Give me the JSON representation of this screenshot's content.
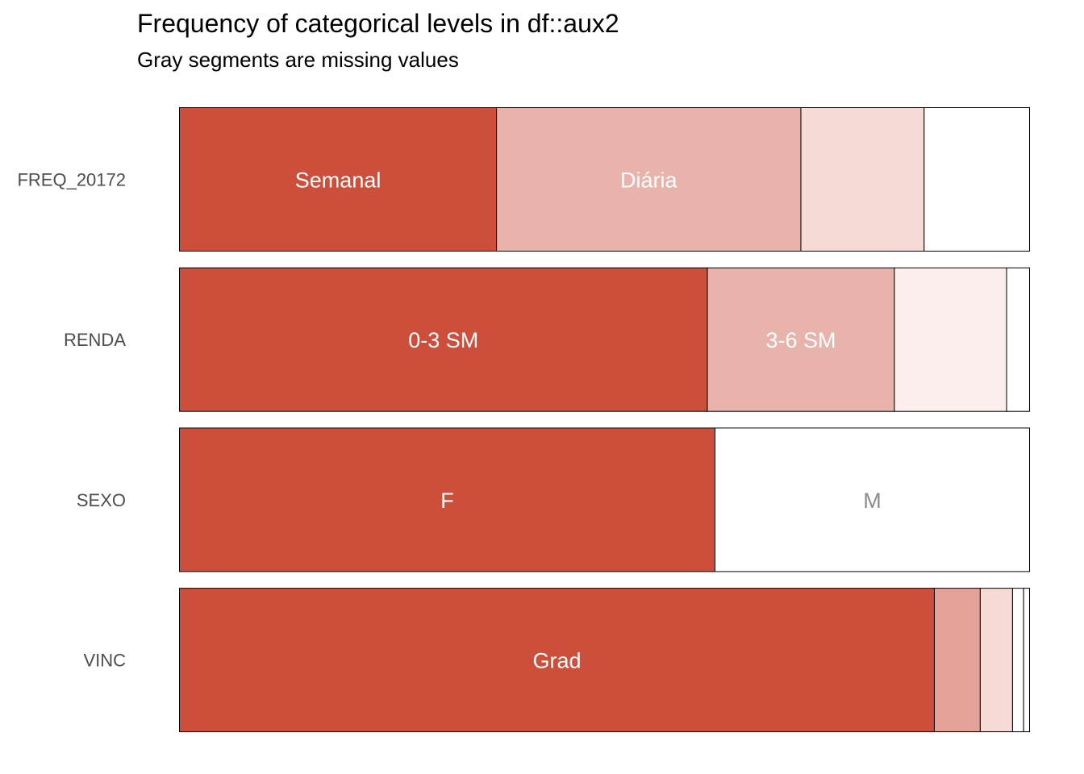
{
  "chart_data": {
    "type": "bar",
    "orientation": "horizontal",
    "stacked": "proportional",
    "title": "Frequency of categorical levels in df::aux2",
    "subtitle": "Gray segments are missing values",
    "xlabel": "",
    "ylabel": "",
    "xlim": [
      0,
      1
    ],
    "grid": false,
    "legend": "none",
    "categories": [
      "FREQ_20172",
      "RENDA",
      "SEXO",
      "VINC"
    ],
    "bars": [
      {
        "category": "FREQ_20172",
        "segments": [
          {
            "label": "Semanal",
            "value": 0.373,
            "color": "#CD4F3B",
            "label_color": "#ffffff"
          },
          {
            "label": "Diária",
            "value": 0.358,
            "color": "#E8B3AB",
            "label_color": "#ffffff"
          },
          {
            "label": "",
            "value": 0.145,
            "color": "#F5DAD6",
            "label_color": "#ffffff"
          },
          {
            "label": "",
            "value": 0.124,
            "color": "#ffffff",
            "label_color": "#ffffff"
          }
        ]
      },
      {
        "category": "RENDA",
        "segments": [
          {
            "label": "0-3 SM",
            "value": 0.621,
            "color": "#CD4F3B",
            "label_color": "#ffffff"
          },
          {
            "label": "3-6 SM",
            "value": 0.22,
            "color": "#E8B3AB",
            "label_color": "#ffffff"
          },
          {
            "label": "",
            "value": 0.132,
            "color": "#FBEEEC",
            "label_color": "#ffffff"
          },
          {
            "label": "",
            "value": 0.027,
            "color": "#ffffff",
            "label_color": "#ffffff"
          }
        ]
      },
      {
        "category": "SEXO",
        "segments": [
          {
            "label": "F",
            "value": 0.63,
            "color": "#CD4F3B",
            "label_color": "#ffffff"
          },
          {
            "label": "M",
            "value": 0.37,
            "color": "#ffffff",
            "label_color": "#8c8c8c"
          }
        ]
      },
      {
        "category": "VINC",
        "segments": [
          {
            "label": "Grad",
            "value": 0.888,
            "color": "#CD4F3B",
            "label_color": "#ffffff"
          },
          {
            "label": "",
            "value": 0.054,
            "color": "#E4A197",
            "label_color": "#ffffff"
          },
          {
            "label": "",
            "value": 0.038,
            "color": "#F5DAD6",
            "label_color": "#ffffff"
          },
          {
            "label": "",
            "value": 0.013,
            "color": "#ffffff",
            "label_color": "#ffffff"
          },
          {
            "label": "",
            "value": 0.007,
            "color": "#ffffff",
            "label_color": "#ffffff"
          }
        ]
      }
    ]
  }
}
